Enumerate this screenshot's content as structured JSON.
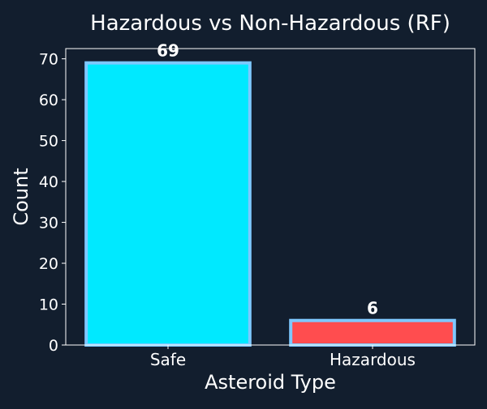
{
  "chart_data": {
    "type": "bar",
    "title": "Hazardous vs Non-Hazardous (RF)",
    "xlabel": "Asteroid Type",
    "ylabel": "Count",
    "categories": [
      "Safe",
      "Hazardous"
    ],
    "values": [
      69,
      6
    ],
    "data_labels": [
      "69",
      "6"
    ],
    "ylim": [
      0,
      72.5
    ],
    "yticks": [
      0,
      10,
      20,
      30,
      40,
      50,
      60,
      70
    ],
    "grid": false,
    "legend": "none",
    "colors": {
      "background": "#121e2e",
      "text": "#ffffff",
      "axis": "#ffffff",
      "bar_fills": [
        "#00e9ff",
        "#ff4d4f"
      ],
      "bar_edge": "#7ec8ff"
    }
  }
}
